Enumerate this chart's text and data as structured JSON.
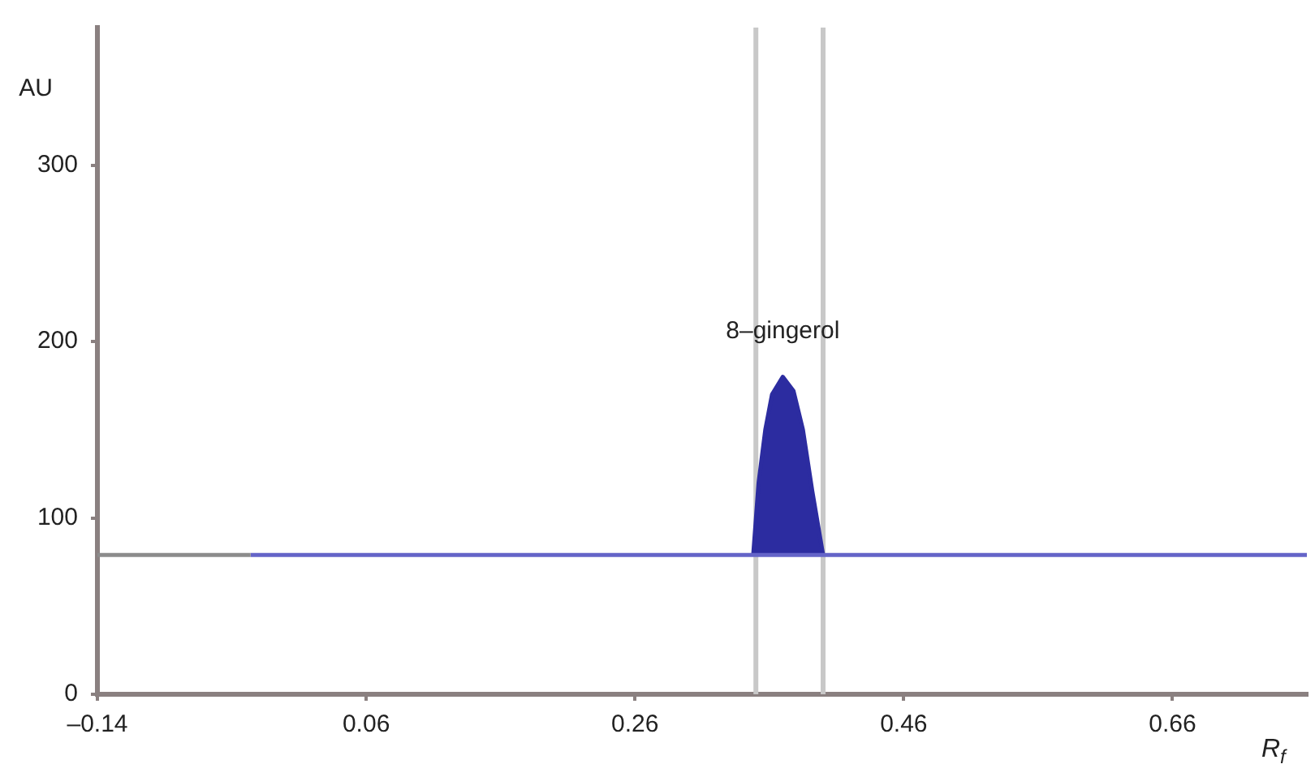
{
  "chart_data": {
    "type": "line",
    "xlabel": "R$_{f}$",
    "ylabel": "AU",
    "xlim": [
      -0.14,
      0.76
    ],
    "xticks": [
      {
        "value": -0.14,
        "label": "–0.14"
      },
      0.06,
      0.26,
      0.46,
      0.66
    ],
    "ylim": [
      0,
      378
    ],
    "yticks": [
      0,
      100,
      200,
      300
    ],
    "grid": false,
    "legend": false,
    "marker": "none",
    "line_style": "solid",
    "series": [
      {
        "color": "#8c8c8c",
        "x": [
          -0.14,
          -0.026
        ],
        "values": [
          79,
          79
        ]
      },
      {
        "color": "#6464c8",
        "x": [
          -0.026,
          0.348,
          0.4,
          0.76
        ],
        "values": [
          79,
          79,
          79,
          79
        ]
      },
      {
        "type": "area",
        "color": "#2c2ca0",
        "x": [
          0.348,
          0.352,
          0.357,
          0.362,
          0.37,
          0.378,
          0.385,
          0.392,
          0.4
        ],
        "values": [
          79,
          120,
          150,
          170,
          180,
          172,
          150,
          115,
          79
        ]
      }
    ],
    "ref_lines": [
      {
        "axis": "x",
        "value": 0.35,
        "color": "#c8c8c8"
      },
      {
        "axis": "x",
        "value": 0.4,
        "color": "#c8c8c8"
      }
    ],
    "annotations": [
      "8–gingerol"
    ]
  }
}
